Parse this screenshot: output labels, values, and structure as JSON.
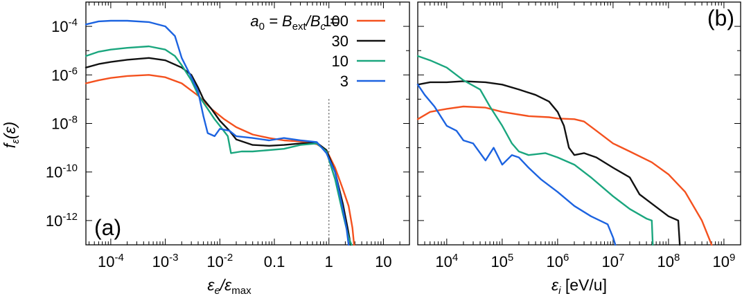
{
  "colors": {
    "a100": "#f4511e",
    "a30": "#111111",
    "a10": "#1aa67e",
    "a3": "#1c63e0"
  },
  "legend": {
    "title_parts": [
      "a",
      "0",
      " = B",
      "ext",
      "/B",
      "c",
      " ="
    ],
    "entries": [
      {
        "label": "100",
        "key": "a100"
      },
      {
        "label": "30",
        "key": "a30"
      },
      {
        "label": "10",
        "key": "a10"
      },
      {
        "label": "3",
        "key": "a3"
      }
    ]
  },
  "y_axis": {
    "label_parts": [
      "f",
      "ε",
      "(ε)"
    ],
    "tick_labels": [
      {
        "base": "10",
        "exp": "-4"
      },
      {
        "base": "10",
        "exp": "-6"
      },
      {
        "base": "10",
        "exp": "-8"
      },
      {
        "base": "10",
        "exp": "-10"
      },
      {
        "base": "10",
        "exp": "-12"
      }
    ]
  },
  "panel_a": {
    "label": "(a)",
    "xlabel_parts": [
      "ε",
      "e",
      "/ε",
      "max"
    ],
    "tick_labels": [
      {
        "base": "10",
        "exp": "-4"
      },
      {
        "base": "10",
        "exp": "-3"
      },
      {
        "base": "10",
        "exp": "-2"
      },
      {
        "base": "0.1",
        "exp": ""
      },
      {
        "base": "1",
        "exp": ""
      },
      {
        "base": "10",
        "exp": ""
      }
    ]
  },
  "panel_b": {
    "label": "(b)",
    "xlabel_parts": [
      "ε",
      "i",
      " [eV/u]"
    ],
    "tick_labels": [
      {
        "base": "10",
        "exp": "4"
      },
      {
        "base": "10",
        "exp": "5"
      },
      {
        "base": "10",
        "exp": "6"
      },
      {
        "base": "10",
        "exp": "7"
      },
      {
        "base": "10",
        "exp": "8"
      },
      {
        "base": "10",
        "exp": "9"
      }
    ]
  },
  "chart_data": [
    {
      "type": "line",
      "panel": "a",
      "xscale": "log",
      "yscale": "log",
      "xlim": [
        3.5e-05,
        30
      ],
      "ylim": [
        1e-13,
        0.001
      ],
      "vline_x": 1,
      "series": [
        {
          "key": "a100",
          "name": "100",
          "points": [
            [
              3.5e-05,
              4.5e-07
            ],
            [
              6e-05,
              6e-07
            ],
            [
              0.0001,
              7.5e-07
            ],
            [
              0.0002,
              9e-07
            ],
            [
              0.0005,
              1e-06
            ],
            [
              0.001,
              8e-07
            ],
            [
              0.002,
              4.5e-07
            ],
            [
              0.004,
              1.4e-07
            ],
            [
              0.007,
              4e-08
            ],
            [
              0.012,
              1.5e-08
            ],
            [
              0.02,
              7e-09
            ],
            [
              0.04,
              3.5e-09
            ],
            [
              0.08,
              2.5e-09
            ],
            [
              0.15,
              2e-09
            ],
            [
              0.3,
              1.8e-09
            ],
            [
              0.6,
              1.4e-09
            ],
            [
              0.9,
              8e-10
            ],
            [
              1.3,
              1.5e-10
            ],
            [
              1.8,
              2e-11
            ],
            [
              2.3,
              4e-12
            ],
            [
              2.7,
              5e-13
            ],
            [
              2.9,
              1e-13
            ]
          ]
        },
        {
          "key": "a30",
          "name": "30",
          "points": [
            [
              3.5e-05,
              2e-06
            ],
            [
              6e-05,
              2.8e-06
            ],
            [
              0.0001,
              3.4e-06
            ],
            [
              0.0002,
              4.2e-06
            ],
            [
              0.0005,
              5e-06
            ],
            [
              0.001,
              4e-06
            ],
            [
              0.002,
              2e-06
            ],
            [
              0.003,
              1e-06
            ],
            [
              0.004,
              3e-07
            ],
            [
              0.005,
              1e-07
            ],
            [
              0.007,
              4e-08
            ],
            [
              0.01,
              1.3e-08
            ],
            [
              0.015,
              5e-09
            ],
            [
              0.02,
              2.2e-09
            ],
            [
              0.04,
              1.3e-09
            ],
            [
              0.08,
              1.2e-09
            ],
            [
              0.15,
              1.3e-09
            ],
            [
              0.3,
              1.5e-09
            ],
            [
              0.6,
              1.6e-09
            ],
            [
              0.9,
              8e-10
            ],
            [
              1.3,
              1e-10
            ],
            [
              1.8,
              5e-12
            ],
            [
              2.2,
              5e-13
            ],
            [
              2.5,
              1e-13
            ]
          ]
        },
        {
          "key": "a10",
          "name": "10",
          "points": [
            [
              3.5e-05,
              6e-06
            ],
            [
              6e-05,
              9e-06
            ],
            [
              0.0001,
              1.1e-05
            ],
            [
              0.0002,
              1.3e-05
            ],
            [
              0.0005,
              1.5e-05
            ],
            [
              0.001,
              1.1e-05
            ],
            [
              0.0015,
              6e-06
            ],
            [
              0.002,
              2.5e-06
            ],
            [
              0.003,
              6e-07
            ],
            [
              0.004,
              1.5e-07
            ],
            [
              0.006,
              4e-08
            ],
            [
              0.008,
              1.5e-08
            ],
            [
              0.01,
              8e-09
            ],
            [
              0.014,
              3e-09
            ],
            [
              0.016,
              6e-10
            ],
            [
              0.025,
              7e-10
            ],
            [
              0.04,
              7e-10
            ],
            [
              0.08,
              8e-10
            ],
            [
              0.15,
              9e-10
            ],
            [
              0.3,
              1.3e-09
            ],
            [
              0.6,
              1.5e-09
            ],
            [
              0.9,
              7e-10
            ],
            [
              1.3,
              5e-11
            ],
            [
              1.8,
              2e-12
            ],
            [
              2.3,
              2e-13
            ],
            [
              2.6,
              1e-13
            ]
          ]
        },
        {
          "key": "a3",
          "name": "3",
          "points": [
            [
              3.5e-05,
              0.00012
            ],
            [
              6e-05,
              0.00016
            ],
            [
              0.0001,
              0.00017
            ],
            [
              0.0002,
              0.00017
            ],
            [
              0.0005,
              0.00015
            ],
            [
              0.001,
              0.0001
            ],
            [
              0.0015,
              4e-05
            ],
            [
              0.002,
              5e-06
            ],
            [
              0.003,
              8e-07
            ],
            [
              0.004,
              2e-07
            ],
            [
              0.005,
              2e-08
            ],
            [
              0.006,
              4e-09
            ],
            [
              0.008,
              3e-09
            ],
            [
              0.01,
              6e-09
            ],
            [
              0.015,
              5e-09
            ],
            [
              0.02,
              3e-09
            ],
            [
              0.04,
              2.5e-09
            ],
            [
              0.08,
              2e-09
            ],
            [
              0.15,
              2.5e-09
            ],
            [
              0.3,
              2e-09
            ],
            [
              0.6,
              1.7e-09
            ],
            [
              0.9,
              6e-10
            ],
            [
              1.3,
              1e-10
            ],
            [
              1.8,
              3e-12
            ],
            [
              2.1,
              5e-13
            ],
            [
              2.3,
              1e-13
            ]
          ]
        }
      ]
    },
    {
      "type": "line",
      "panel": "b",
      "xscale": "log",
      "yscale": "log",
      "xlim": [
        3000.0,
        2000000000.0
      ],
      "ylim": [
        1e-13,
        0.001
      ],
      "series": [
        {
          "key": "a100",
          "name": "100",
          "points": [
            [
              3000.0,
              1.5e-08
            ],
            [
              5000.0,
              3e-08
            ],
            [
              10000.0,
              4e-08
            ],
            [
              20000.0,
              5e-08
            ],
            [
              50000.0,
              4.5e-08
            ],
            [
              100000.0,
              3e-08
            ],
            [
              300000.0,
              2e-08
            ],
            [
              700000.0,
              1.8e-08
            ],
            [
              1000000.0,
              1.6e-08
            ],
            [
              2000000.0,
              1.5e-08
            ],
            [
              3000000.0,
              1.2e-08
            ],
            [
              5000000.0,
              5e-09
            ],
            [
              10000000.0,
              1.5e-09
            ],
            [
              20000000.0,
              7e-10
            ],
            [
              50000000.0,
              2.5e-10
            ],
            [
              100000000.0,
              8e-11
            ],
            [
              200000000.0,
              1.5e-11
            ],
            [
              400000000.0,
              1e-12
            ],
            [
              600000000.0,
              1e-13
            ]
          ]
        },
        {
          "key": "a30",
          "name": "30",
          "points": [
            [
              3000.0,
              4e-07
            ],
            [
              5000.0,
              5e-07
            ],
            [
              10000.0,
              5e-07
            ],
            [
              20000.0,
              5.5e-07
            ],
            [
              50000.0,
              5e-07
            ],
            [
              100000.0,
              4e-07
            ],
            [
              200000.0,
              2.5e-07
            ],
            [
              400000.0,
              1.5e-07
            ],
            [
              700000.0,
              8e-08
            ],
            [
              1000000.0,
              3e-08
            ],
            [
              1300000.0,
              8e-09
            ],
            [
              1600000.0,
              1e-09
            ],
            [
              2000000.0,
              5e-10
            ],
            [
              3000000.0,
              6e-10
            ],
            [
              5000000.0,
              4e-10
            ],
            [
              10000000.0,
              1.5e-10
            ],
            [
              20000000.0,
              6e-11
            ],
            [
              30000000.0,
              1.2e-11
            ],
            [
              50000000.0,
              5e-12
            ],
            [
              100000000.0,
              1.5e-12
            ],
            [
              150000000.0,
              1e-12
            ],
            [
              160000000.0,
              1e-13
            ]
          ]
        },
        {
          "key": "a10",
          "name": "10",
          "points": [
            [
              3000.0,
              6e-06
            ],
            [
              5000.0,
              4e-06
            ],
            [
              10000.0,
              2e-06
            ],
            [
              20000.0,
              6e-07
            ],
            [
              40000.0,
              2.5e-07
            ],
            [
              60000.0,
              5e-08
            ],
            [
              100000.0,
              8e-09
            ],
            [
              150000.0,
              1.5e-09
            ],
            [
              200000.0,
              7e-10
            ],
            [
              300000.0,
              5e-10
            ],
            [
              600000.0,
              6e-10
            ],
            [
              1000000.0,
              4e-10
            ],
            [
              2000000.0,
              2e-10
            ],
            [
              4000000.0,
              6e-11
            ],
            [
              10000000.0,
              1e-11
            ],
            [
              20000000.0,
              3e-12
            ],
            [
              40000000.0,
              1.2e-12
            ],
            [
              50000000.0,
              1e-12
            ],
            [
              52000000.0,
              1e-13
            ]
          ]
        },
        {
          "key": "a3",
          "name": "3",
          "points": [
            [
              3000.0,
              4e-07
            ],
            [
              4000.0,
              1.5e-07
            ],
            [
              6000.0,
              5e-08
            ],
            [
              10000.0,
              8e-09
            ],
            [
              15000.0,
              5e-09
            ],
            [
              20000.0,
              2e-09
            ],
            [
              30000.0,
              1.5e-09
            ],
            [
              50000.0,
              3e-10
            ],
            [
              70000.0,
              1e-09
            ],
            [
              100000.0,
              2e-10
            ],
            [
              150000.0,
              5e-10
            ],
            [
              200000.0,
              4e-10
            ],
            [
              300000.0,
              1.5e-10
            ],
            [
              500000.0,
              5e-11
            ],
            [
              1000000.0,
              1.5e-11
            ],
            [
              2000000.0,
              4e-12
            ],
            [
              4000000.0,
              1.5e-12
            ],
            [
              8000000.0,
              7e-13
            ],
            [
              10000000.0,
              2e-13
            ],
            [
              11000000.0,
              1e-13
            ]
          ]
        }
      ]
    }
  ]
}
